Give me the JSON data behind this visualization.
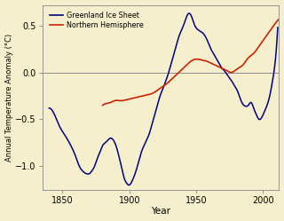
{
  "title": "",
  "xlabel": "Year",
  "ylabel": "Annual Temperature Anomaly (°C)",
  "background_color": "#f5efcd",
  "plot_bg_color": "#f5efcd",
  "blue_color": "#000080",
  "red_color": "#cc2200",
  "ylim": [
    -1.25,
    0.72
  ],
  "xlim": [
    1835,
    2012
  ],
  "yticks": [
    -1.0,
    -0.5,
    0.0,
    0.5
  ],
  "xticks": [
    1850,
    1900,
    1950,
    2000
  ],
  "legend_labels": [
    "Greenland Ice Sheet",
    "Northern Hemisphere"
  ],
  "greenland_x": [
    1840,
    1843,
    1845,
    1848,
    1851,
    1854,
    1857,
    1860,
    1862,
    1865,
    1868,
    1870,
    1872,
    1874,
    1876,
    1878,
    1880,
    1882,
    1884,
    1886,
    1888,
    1890,
    1892,
    1894,
    1896,
    1898,
    1900,
    1902,
    1905,
    1907,
    1909,
    1911,
    1913,
    1915,
    1917,
    1919,
    1921,
    1923,
    1925,
    1927,
    1929,
    1931,
    1933,
    1935,
    1937,
    1939,
    1941,
    1943,
    1945,
    1947,
    1949,
    1951,
    1953,
    1955,
    1957,
    1959,
    1961,
    1963,
    1965,
    1967,
    1969,
    1971,
    1973,
    1975,
    1977,
    1979,
    1981,
    1983,
    1985,
    1987,
    1989,
    1991,
    1993,
    1995,
    1997,
    1999,
    2001,
    2003,
    2005,
    2007,
    2009,
    2011
  ],
  "greenland_y": [
    -0.38,
    -0.42,
    -0.48,
    -0.58,
    -0.65,
    -0.72,
    -0.8,
    -0.9,
    -0.98,
    -1.05,
    -1.08,
    -1.08,
    -1.05,
    -1.0,
    -0.92,
    -0.85,
    -0.78,
    -0.75,
    -0.72,
    -0.7,
    -0.72,
    -0.78,
    -0.88,
    -1.0,
    -1.12,
    -1.18,
    -1.2,
    -1.16,
    -1.05,
    -0.95,
    -0.85,
    -0.78,
    -0.72,
    -0.65,
    -0.55,
    -0.45,
    -0.35,
    -0.25,
    -0.18,
    -0.1,
    -0.02,
    0.08,
    0.18,
    0.28,
    0.38,
    0.45,
    0.52,
    0.6,
    0.63,
    0.58,
    0.5,
    0.46,
    0.44,
    0.42,
    0.38,
    0.32,
    0.25,
    0.2,
    0.15,
    0.1,
    0.05,
    0.02,
    -0.02,
    -0.06,
    -0.1,
    -0.15,
    -0.2,
    -0.28,
    -0.34,
    -0.36,
    -0.35,
    -0.32,
    -0.38,
    -0.45,
    -0.5,
    -0.48,
    -0.42,
    -0.35,
    -0.25,
    -0.1,
    0.1,
    0.48
  ],
  "nh_x": [
    1880,
    1883,
    1886,
    1889,
    1892,
    1895,
    1898,
    1901,
    1904,
    1907,
    1910,
    1913,
    1916,
    1919,
    1922,
    1925,
    1928,
    1931,
    1934,
    1937,
    1940,
    1943,
    1946,
    1949,
    1952,
    1955,
    1958,
    1961,
    1964,
    1967,
    1970,
    1973,
    1976,
    1979,
    1982,
    1985,
    1988,
    1991,
    1994,
    1997,
    2000,
    2003,
    2006,
    2009,
    2012
  ],
  "nh_y": [
    -0.35,
    -0.33,
    -0.32,
    -0.3,
    -0.3,
    -0.3,
    -0.29,
    -0.28,
    -0.27,
    -0.26,
    -0.25,
    -0.24,
    -0.23,
    -0.21,
    -0.18,
    -0.15,
    -0.12,
    -0.08,
    -0.04,
    0.0,
    0.04,
    0.08,
    0.12,
    0.14,
    0.14,
    0.13,
    0.12,
    0.1,
    0.08,
    0.06,
    0.04,
    0.02,
    0.0,
    0.02,
    0.05,
    0.08,
    0.14,
    0.18,
    0.22,
    0.28,
    0.34,
    0.4,
    0.46,
    0.52,
    0.57
  ]
}
